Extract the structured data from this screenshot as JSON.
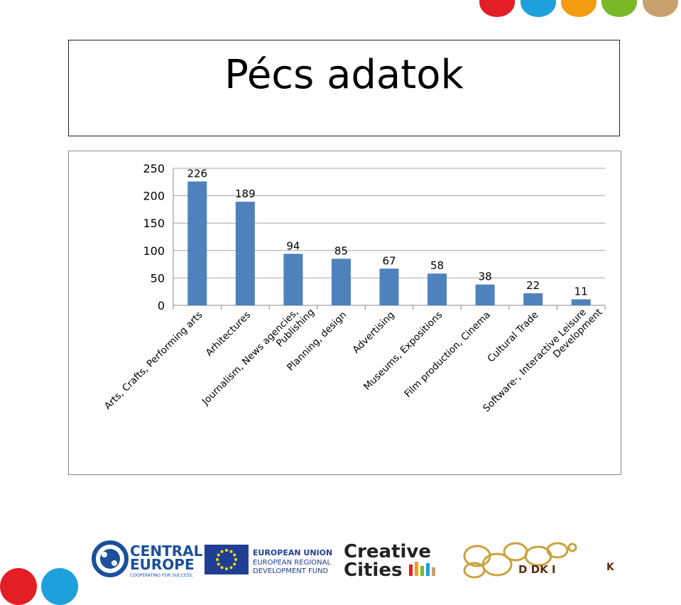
{
  "slide": {
    "title": "Pécs adatok"
  },
  "decor": {
    "dot_colors": [
      "#e31e24",
      "#1ea0dc",
      "#f39c12",
      "#7ab828",
      "#c8a06e"
    ]
  },
  "chart_data": {
    "type": "bar",
    "categories": [
      "Arts, Crafts, Performing arts",
      "Arhitectures",
      "Journalism, News agencies, Publishing",
      "Planning, design",
      "Advertising",
      "Museums, Expositions",
      "Film production, Cinema",
      "Cultural Trade",
      "Software-, Interactive Leisure Development"
    ],
    "category_lines": [
      [
        "Arts, Crafts, Performing arts"
      ],
      [
        "Arhitectures"
      ],
      [
        "Journalism, News agencies,",
        "Publishing"
      ],
      [
        "Planning, design"
      ],
      [
        "Advertising"
      ],
      [
        "Museums, Expositions"
      ],
      [
        "Film production, Cinema"
      ],
      [
        "Cultural Trade"
      ],
      [
        "Software-, Interactive Leisure",
        "Development"
      ]
    ],
    "values": [
      226,
      189,
      94,
      85,
      67,
      58,
      38,
      22,
      11
    ],
    "ylim": [
      0,
      250
    ],
    "yticks": [
      0,
      50,
      100,
      150,
      200,
      250
    ],
    "grid": true,
    "bar_color": "#4f81bd"
  },
  "logos": {
    "central_europe": {
      "line1": "CENTRAL",
      "line2": "EUROPE",
      "tagline": "COOPERATING FOR SUCCESS."
    },
    "eu": {
      "line1": "EUROPEAN UNION",
      "line2": "EUROPEAN REGIONAL",
      "line3": "DEVELOPMENT FUND"
    },
    "creative": {
      "line1": "Creative",
      "line2": "Cities"
    },
    "ddk": {
      "text": "D DK I",
      "tail": "K"
    }
  }
}
